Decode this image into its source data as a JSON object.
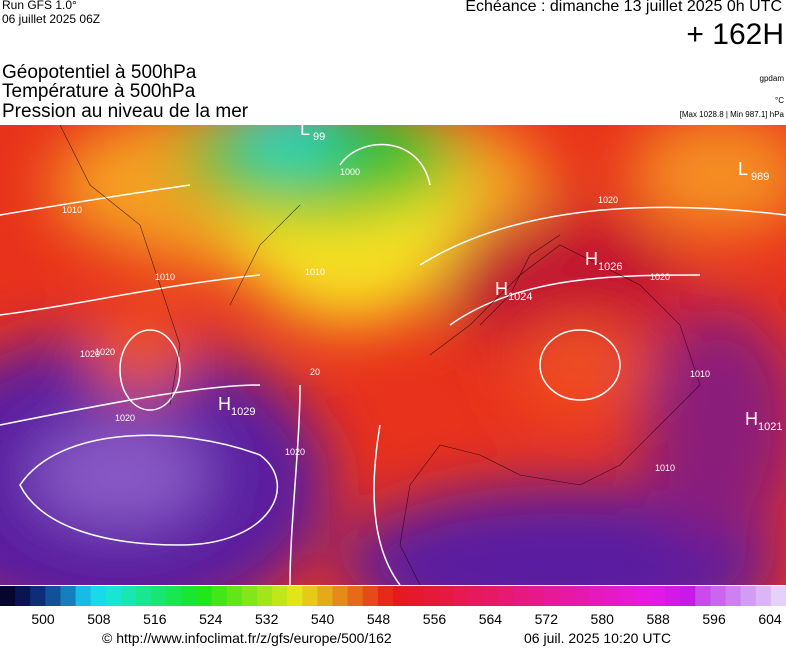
{
  "header": {
    "run": "Run GFS 1.0°",
    "run_date": "06 juillet 2025 06Z",
    "echeance": "Echéance : dimanche 13 juillet 2025 0h UTC",
    "offset": "+ 162H"
  },
  "layers": [
    "Géopotentiel à 500hPa",
    "Température à 500hPa",
    "Pression au niveau de la mer"
  ],
  "units": {
    "geopotential": "gpdam",
    "temperature": "°C",
    "pressure": "[Max 1028.8 | Min 987.1] hPa"
  },
  "centers": [
    {
      "letter": "H",
      "value": "1029"
    },
    {
      "letter": "H",
      "value": "1024"
    },
    {
      "letter": "H",
      "value": "1026"
    },
    {
      "letter": "H",
      "value": "1021"
    },
    {
      "letter": "L",
      "value": "989"
    },
    {
      "letter": "L",
      "value": "99"
    }
  ],
  "isobar_labels": [
    "1010",
    "1010",
    "1020",
    "1020",
    "1010",
    "1000",
    "1020",
    "1020",
    "20",
    "1010",
    "1010",
    "1020",
    "1020"
  ],
  "colorbar": {
    "ticks": [
      500,
      508,
      516,
      524,
      532,
      540,
      548,
      556,
      564,
      572,
      580,
      588,
      596,
      604
    ]
  },
  "footer": {
    "url": "© http://www.infoclimat.fr/z/gfs/europe/500/162",
    "timestamp": "06 juil. 2025 10:20 UTC"
  }
}
